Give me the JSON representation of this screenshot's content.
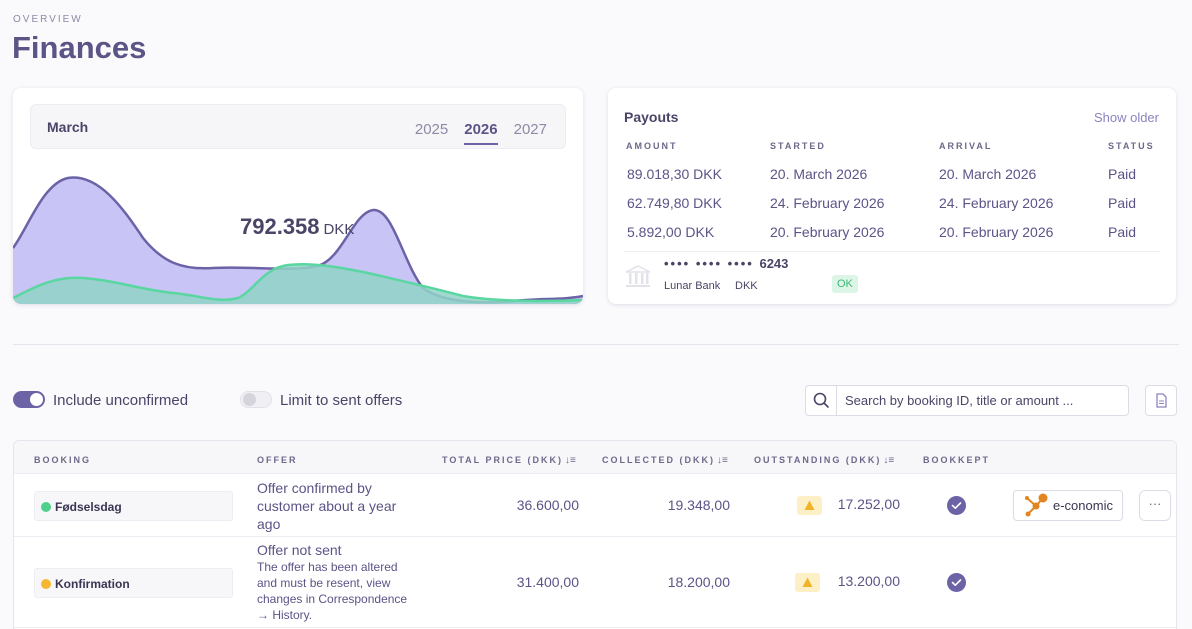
{
  "header": {
    "overline": "OVERVIEW",
    "title": "Finances"
  },
  "revenue": {
    "month": "March",
    "years": [
      "2025",
      "2026",
      "2027"
    ],
    "selected_year": "2026",
    "total_value": "792.358",
    "total_unit": "DKK",
    "colors": {
      "primary_fill": "#c5c1f5",
      "primary_stroke": "#6b63a6",
      "secondary_fill": "#8fd3c7",
      "secondary_stroke": "#5ad6a0"
    }
  },
  "payouts": {
    "title": "Payouts",
    "show_older": "Show older",
    "headers": [
      "AMOUNT",
      "STARTED",
      "ARRIVAL",
      "STATUS"
    ],
    "rows": [
      [
        "89.018,30 DKK",
        "20. March 2026",
        "20. March 2026",
        "Paid"
      ],
      [
        "62.749,80 DKK",
        "24. February 2026",
        "24. February 2026",
        "Paid"
      ],
      [
        "5.892,00 DKK",
        "20. February 2026",
        "20. February 2026",
        "Paid"
      ]
    ],
    "account": {
      "mask": "•••• •••• ••••",
      "last4": "6243",
      "bank": "Lunar Bank",
      "currency": "DKK",
      "status": "OK"
    }
  },
  "filters": {
    "include_unconfirmed": "Include unconfirmed",
    "include_unconfirmed_on": true,
    "limit_sent": "Limit to sent offers",
    "limit_sent_on": false,
    "search_placeholder": "Search by booking ID, title or amount ..."
  },
  "table": {
    "headers": {
      "booking": "BOOKING",
      "offer": "OFFER",
      "total": "TOTAL PRICE (DKK)",
      "collected": "COLLECTED (DKK)",
      "outstanding": "OUTSTANDING (DKK)",
      "bookkept": "BOOKKEPT"
    },
    "rows": [
      {
        "booking": "Fødselsdag",
        "dot_color": "#4fd08c",
        "offer_title": "Offer confirmed by customer about a year ago",
        "offer_desc": "",
        "total": "36.600,00",
        "collected": "19.348,00",
        "outstanding": "17.252,00",
        "integration": "e-conomic"
      },
      {
        "booking": "Konfirmation",
        "dot_color": "#f5b82e",
        "offer_title": "Offer not sent",
        "offer_desc": "The offer has been altered and must be resent, view changes in Correspondence → History.",
        "total": "31.400,00",
        "collected": "18.200,00",
        "outstanding": "13.200,00",
        "integration": ""
      }
    ]
  }
}
